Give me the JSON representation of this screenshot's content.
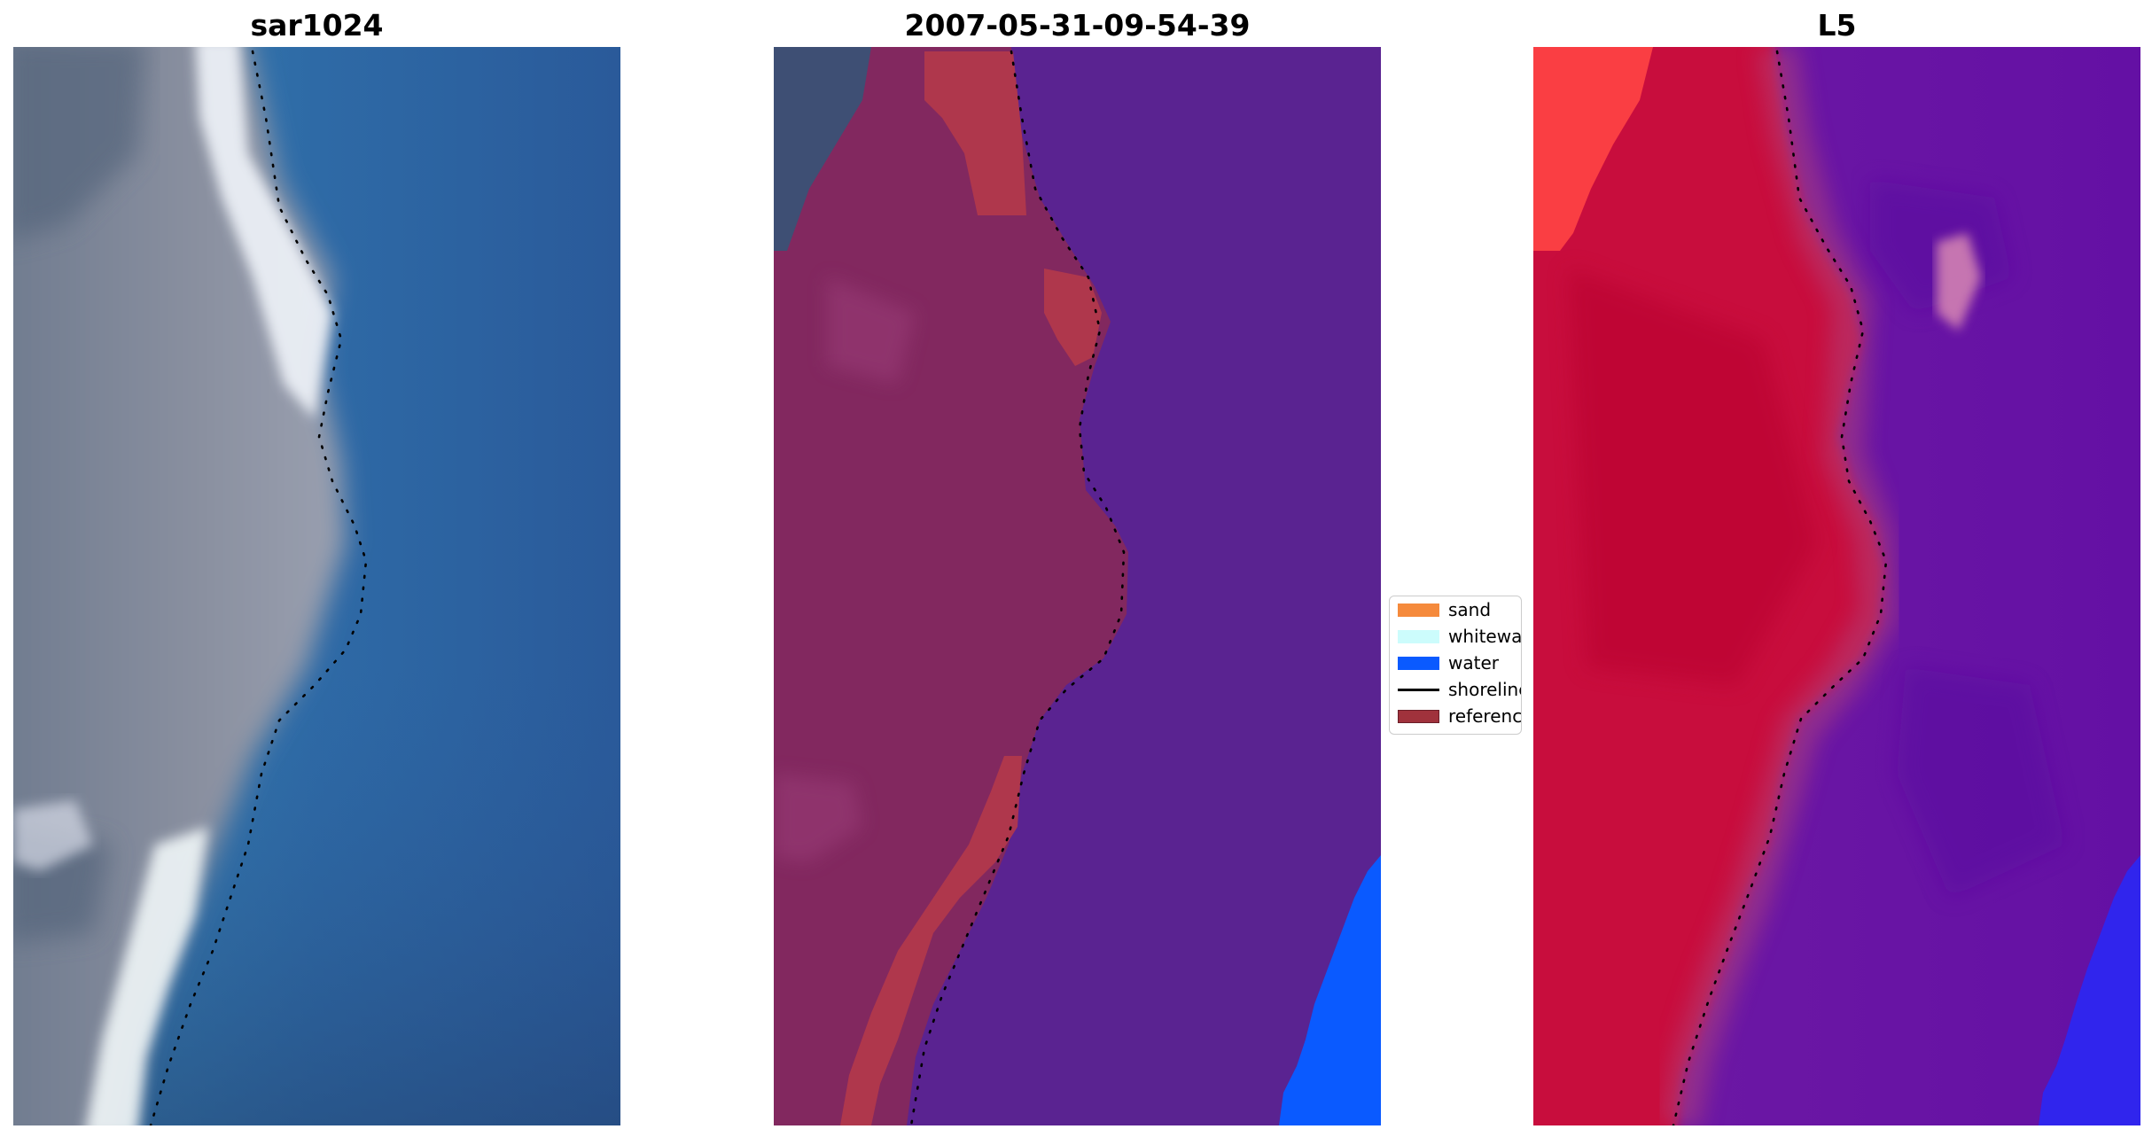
{
  "titles": {
    "panel1": "sar1024",
    "panel2": "2007-05-31-09-54-39",
    "panel3": "L5"
  },
  "legend": {
    "items": [
      {
        "label": "sand",
        "color": "#f58a3c",
        "kind": "patch"
      },
      {
        "label": "whitewat",
        "color": "#ccfcfc",
        "kind": "patch"
      },
      {
        "label": "water",
        "color": "#0a5aff",
        "kind": "patch"
      },
      {
        "label": "shoreline",
        "color": "#000000",
        "kind": "line"
      },
      {
        "label": "reference",
        "color": "#a0323c",
        "kind": "patch"
      }
    ]
  },
  "colors": {
    "sar_sand": "#7e8596",
    "sar_water": "#2c6ba8",
    "sar_white": "#f2f4f8",
    "cls_bg": "#5a2391",
    "cls_sand": "#82285f",
    "cls_ref": "#b4394a",
    "cls_water": "#0a5aff",
    "l5_land": "#c8103c",
    "l5_water": "#6a14a0",
    "l5_blue": "#2a28f5",
    "shoreline": "#000000"
  }
}
